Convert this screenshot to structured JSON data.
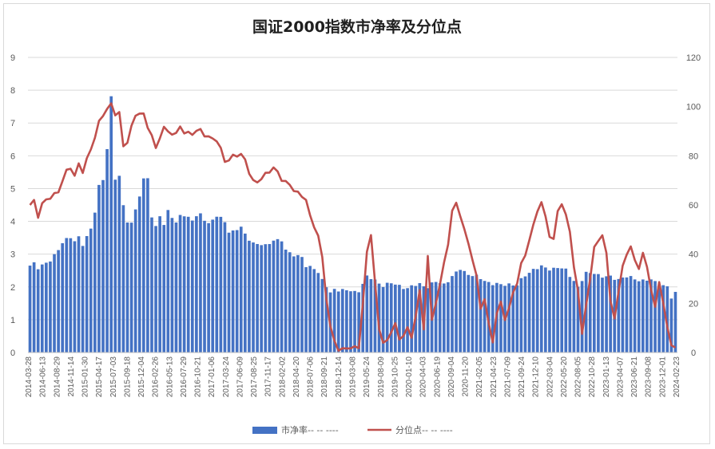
{
  "chart_data": {
    "type": "bar+line",
    "title": "国证2000指数市净率及分位点",
    "y_left": {
      "ylim": [
        0,
        9
      ],
      "ticks": [
        "0",
        "1",
        "2",
        "3",
        "4",
        "5",
        "6",
        "7",
        "8",
        "9"
      ]
    },
    "y_right": {
      "ylim": [
        0,
        120
      ],
      "ticks": [
        "0",
        "20",
        "40",
        "60",
        "80",
        "100",
        "120"
      ]
    },
    "x_tick_labels": [
      "2014-03-28",
      "2014-06-13",
      "2014-08-29",
      "2014-11-14",
      "2015-01-30",
      "2015-04-17",
      "2015-07-03",
      "2015-09-18",
      "2015-12-04",
      "2016-02-26",
      "2016-05-13",
      "2016-07-29",
      "2016-10-21",
      "2017-01-06",
      "2017-03-24",
      "2017-06-09",
      "2017-08-25",
      "2017-11-17",
      "2018-02-02",
      "2018-04-20",
      "2018-07-06",
      "2018-09-21",
      "2018-12-14",
      "2019-03-08",
      "2019-05-24",
      "2019-08-09",
      "2019-10-25",
      "2020-01-10",
      "2020-04-03",
      "2020-06-19",
      "2020-09-04",
      "2020-11-20",
      "2021-02-05",
      "2021-04-23",
      "2021-07-09",
      "2021-09-24",
      "2021-12-10",
      "2022-03-04",
      "2022-05-20",
      "2022-08-05",
      "2022-10-28",
      "2023-01-13",
      "2023-04-07",
      "2023-06-21",
      "2023-09-08",
      "2023-12-01",
      "2024-02-23"
    ],
    "series": [
      {
        "name": "市净率",
        "legend_label": "市净率-- -- ----",
        "type": "bar",
        "color": "#4472c4",
        "axis": "left",
        "keypoints": [
          [
            0,
            2.65
          ],
          [
            1,
            2.75
          ],
          [
            2,
            2.6
          ],
          [
            4,
            2.7
          ],
          [
            5,
            2.8
          ],
          [
            8,
            3.35
          ],
          [
            10,
            3.5
          ],
          [
            11,
            3.4
          ],
          [
            12,
            3.55
          ],
          [
            13,
            3.3
          ],
          [
            14,
            3.5
          ],
          [
            15,
            3.75
          ],
          [
            16,
            4.3
          ],
          [
            17,
            5.1
          ],
          [
            18,
            5.3
          ],
          [
            19,
            6.2
          ],
          [
            20,
            7.75
          ],
          [
            21,
            5.3
          ],
          [
            22,
            5.4
          ],
          [
            23,
            4.5
          ],
          [
            24,
            4.0
          ],
          [
            25,
            3.9
          ],
          [
            27,
            4.8
          ],
          [
            28,
            5.3
          ],
          [
            29,
            5.35
          ],
          [
            30,
            4.1
          ],
          [
            31,
            3.8
          ],
          [
            32,
            4.2
          ],
          [
            33,
            3.9
          ],
          [
            34,
            4.35
          ],
          [
            36,
            3.9
          ],
          [
            37,
            4.2
          ],
          [
            38,
            4.2
          ],
          [
            40,
            4.05
          ],
          [
            42,
            4.2
          ],
          [
            44,
            3.95
          ],
          [
            46,
            4.15
          ],
          [
            48,
            4.0
          ],
          [
            49,
            3.7
          ],
          [
            50,
            3.7
          ],
          [
            52,
            3.8
          ],
          [
            53,
            3.6
          ],
          [
            55,
            3.35
          ],
          [
            56,
            3.3
          ],
          [
            58,
            3.25
          ],
          [
            60,
            3.45
          ],
          [
            62,
            3.4
          ],
          [
            63,
            3.1
          ],
          [
            65,
            3.0
          ],
          [
            67,
            2.9
          ],
          [
            68,
            2.6
          ],
          [
            70,
            2.6
          ],
          [
            71,
            2.45
          ],
          [
            72,
            2.2
          ],
          [
            73,
            2.0
          ],
          [
            74,
            1.8
          ],
          [
            75,
            1.95
          ],
          [
            77,
            1.9
          ],
          [
            80,
            1.85
          ],
          [
            81,
            1.9
          ],
          [
            83,
            2.3
          ],
          [
            85,
            2.2
          ],
          [
            87,
            2.05
          ],
          [
            89,
            2.1
          ],
          [
            91,
            2.05
          ],
          [
            93,
            1.95
          ],
          [
            96,
            2.1
          ],
          [
            98,
            2.0
          ],
          [
            100,
            2.15
          ],
          [
            102,
            2.1
          ],
          [
            104,
            2.3
          ],
          [
            106,
            2.55
          ],
          [
            108,
            2.4
          ],
          [
            110,
            2.3
          ],
          [
            112,
            2.2
          ],
          [
            114,
            2.1
          ],
          [
            116,
            2.05
          ],
          [
            118,
            2.1
          ],
          [
            120,
            2.05
          ],
          [
            122,
            2.35
          ],
          [
            124,
            2.55
          ],
          [
            126,
            2.6
          ],
          [
            128,
            2.55
          ],
          [
            130,
            2.6
          ],
          [
            132,
            2.5
          ],
          [
            134,
            2.2
          ],
          [
            135,
            2.0
          ],
          [
            137,
            2.4
          ],
          [
            139,
            2.45
          ],
          [
            141,
            2.3
          ],
          [
            143,
            2.3
          ],
          [
            145,
            2.25
          ],
          [
            147,
            2.3
          ],
          [
            149,
            2.25
          ],
          [
            151,
            2.2
          ],
          [
            153,
            2.2
          ],
          [
            155,
            2.1
          ],
          [
            157,
            2.0
          ],
          [
            158,
            1.65
          ],
          [
            159,
            1.8
          ]
        ]
      },
      {
        "name": "分位点",
        "legend_label": "分位点-- -- ----",
        "type": "line",
        "color": "#c0504d",
        "axis": "right",
        "keypoints": [
          [
            0,
            60
          ],
          [
            1,
            62
          ],
          [
            2,
            56
          ],
          [
            3,
            60
          ],
          [
            5,
            63
          ],
          [
            7,
            66
          ],
          [
            8,
            70
          ],
          [
            9,
            73
          ],
          [
            10,
            75
          ],
          [
            11,
            72
          ],
          [
            12,
            77
          ],
          [
            13,
            74
          ],
          [
            15,
            82
          ],
          [
            16,
            88
          ],
          [
            17,
            94
          ],
          [
            18,
            97
          ],
          [
            19,
            99
          ],
          [
            20,
            100
          ],
          [
            21,
            97
          ],
          [
            22,
            98
          ],
          [
            23,
            84
          ],
          [
            24,
            86
          ],
          [
            25,
            91
          ],
          [
            26,
            96
          ],
          [
            27,
            98
          ],
          [
            28,
            97
          ],
          [
            29,
            92
          ],
          [
            30,
            88
          ],
          [
            31,
            82
          ],
          [
            32,
            88
          ],
          [
            33,
            92
          ],
          [
            34,
            90
          ],
          [
            36,
            88
          ],
          [
            37,
            92
          ],
          [
            38,
            90
          ],
          [
            40,
            89
          ],
          [
            42,
            90
          ],
          [
            44,
            88
          ],
          [
            46,
            86
          ],
          [
            48,
            78
          ],
          [
            50,
            80
          ],
          [
            52,
            80
          ],
          [
            53,
            78
          ],
          [
            55,
            70
          ],
          [
            56,
            69
          ],
          [
            58,
            72
          ],
          [
            60,
            76
          ],
          [
            62,
            70
          ],
          [
            63,
            69
          ],
          [
            65,
            67
          ],
          [
            67,
            63
          ],
          [
            68,
            62
          ],
          [
            69,
            55
          ],
          [
            70,
            52
          ],
          [
            71,
            48
          ],
          [
            72,
            38
          ],
          [
            73,
            22
          ],
          [
            74,
            10
          ],
          [
            75,
            5
          ],
          [
            76,
            2
          ],
          [
            77,
            1
          ],
          [
            80,
            2
          ],
          [
            81,
            3
          ],
          [
            82,
            20
          ],
          [
            83,
            40
          ],
          [
            84,
            48
          ],
          [
            85,
            28
          ],
          [
            86,
            10
          ],
          [
            87,
            5
          ],
          [
            88,
            4
          ],
          [
            90,
            12
          ],
          [
            91,
            5
          ],
          [
            92,
            8
          ],
          [
            93,
            10
          ],
          [
            94,
            5
          ],
          [
            96,
            25
          ],
          [
            97,
            10
          ],
          [
            98,
            40
          ],
          [
            99,
            12
          ],
          [
            100,
            20
          ],
          [
            101,
            28
          ],
          [
            103,
            45
          ],
          [
            104,
            57
          ],
          [
            105,
            60
          ],
          [
            106,
            56
          ],
          [
            107,
            50
          ],
          [
            108,
            45
          ],
          [
            109,
            38
          ],
          [
            110,
            30
          ],
          [
            111,
            18
          ],
          [
            112,
            22
          ],
          [
            113,
            12
          ],
          [
            114,
            5
          ],
          [
            115,
            15
          ],
          [
            116,
            20
          ],
          [
            117,
            14
          ],
          [
            118,
            18
          ],
          [
            119,
            25
          ],
          [
            120,
            28
          ],
          [
            121,
            35
          ],
          [
            122,
            40
          ],
          [
            124,
            52
          ],
          [
            125,
            58
          ],
          [
            126,
            60
          ],
          [
            127,
            55
          ],
          [
            128,
            48
          ],
          [
            129,
            46
          ],
          [
            130,
            58
          ],
          [
            131,
            60
          ],
          [
            132,
            55
          ],
          [
            133,
            50
          ],
          [
            134,
            35
          ],
          [
            135,
            25
          ],
          [
            136,
            8
          ],
          [
            137,
            18
          ],
          [
            138,
            30
          ],
          [
            139,
            44
          ],
          [
            140,
            45
          ],
          [
            141,
            48
          ],
          [
            142,
            40
          ],
          [
            143,
            20
          ],
          [
            144,
            15
          ],
          [
            145,
            25
          ],
          [
            146,
            35
          ],
          [
            147,
            40
          ],
          [
            148,
            42
          ],
          [
            149,
            38
          ],
          [
            150,
            35
          ],
          [
            151,
            40
          ],
          [
            152,
            35
          ],
          [
            153,
            25
          ],
          [
            154,
            18
          ],
          [
            155,
            30
          ],
          [
            156,
            20
          ],
          [
            157,
            10
          ],
          [
            158,
            3
          ],
          [
            159,
            1
          ]
        ]
      }
    ],
    "n_bars": 160,
    "legend_position": "bottom"
  }
}
